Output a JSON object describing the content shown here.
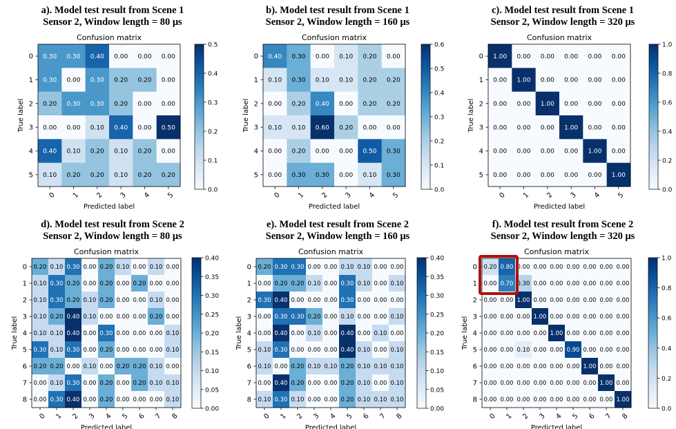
{
  "charts": [
    {
      "panel_title": "a). Model test result from Scene 1",
      "panel_subtitle": "Sensor 2, Window length = 80 μs",
      "chart_data": {
        "type": "heatmap",
        "title": "Confusion matrix",
        "xlabel": "Predicted label",
        "ylabel": "True label",
        "labels": [
          "0",
          "1",
          "2",
          "3",
          "4",
          "5"
        ],
        "values": [
          [
            0.3,
            0.3,
            0.4,
            0.0,
            0.0,
            0.0
          ],
          [
            0.3,
            0.0,
            0.3,
            0.2,
            0.2,
            0.0
          ],
          [
            0.2,
            0.3,
            0.3,
            0.2,
            0.0,
            0.0
          ],
          [
            0.0,
            0.0,
            0.1,
            0.4,
            0.0,
            0.5
          ],
          [
            0.4,
            0.1,
            0.2,
            0.1,
            0.2,
            0.0
          ],
          [
            0.1,
            0.2,
            0.2,
            0.1,
            0.2,
            0.2
          ]
        ],
        "colorbar": {
          "min": 0.0,
          "max": 0.5,
          "ticks": [
            "0.0",
            "0.1",
            "0.2",
            "0.3",
            "0.4",
            "0.5"
          ]
        }
      }
    },
    {
      "panel_title": "b). Model test result from Scene 1",
      "panel_subtitle": "Sensor 2, Window length = 160 μs",
      "chart_data": {
        "type": "heatmap",
        "title": "Confusion matrix",
        "xlabel": "Predicted label",
        "ylabel": "True label",
        "labels": [
          "0",
          "1",
          "2",
          "3",
          "4",
          "5"
        ],
        "values": [
          [
            0.4,
            0.3,
            0.0,
            0.1,
            0.2,
            0.0
          ],
          [
            0.1,
            0.3,
            0.1,
            0.1,
            0.2,
            0.2
          ],
          [
            0.0,
            0.2,
            0.4,
            0.0,
            0.2,
            0.2
          ],
          [
            0.1,
            0.1,
            0.6,
            0.2,
            0.0,
            0.0
          ],
          [
            0.0,
            0.2,
            0.0,
            0.0,
            0.5,
            0.3
          ],
          [
            0.0,
            0.3,
            0.3,
            0.0,
            0.1,
            0.3
          ]
        ],
        "colorbar": {
          "min": 0.0,
          "max": 0.6,
          "ticks": [
            "0.0",
            "0.1",
            "0.2",
            "0.3",
            "0.4",
            "0.5",
            "0.6"
          ]
        }
      }
    },
    {
      "panel_title": "c). Model test result from Scene 1",
      "panel_subtitle": "Sensor 2, Window length = 320 μs",
      "chart_data": {
        "type": "heatmap",
        "title": "Confusion matrix",
        "xlabel": "Predicted label",
        "ylabel": "True label",
        "labels": [
          "0",
          "1",
          "2",
          "3",
          "4",
          "5"
        ],
        "values": [
          [
            1.0,
            0.0,
            0.0,
            0.0,
            0.0,
            0.0
          ],
          [
            0.0,
            1.0,
            0.0,
            0.0,
            0.0,
            0.0
          ],
          [
            0.0,
            0.0,
            1.0,
            0.0,
            0.0,
            0.0
          ],
          [
            0.0,
            0.0,
            0.0,
            1.0,
            0.0,
            0.0
          ],
          [
            0.0,
            0.0,
            0.0,
            0.0,
            1.0,
            0.0
          ],
          [
            0.0,
            0.0,
            0.0,
            0.0,
            0.0,
            1.0
          ]
        ],
        "colorbar": {
          "min": 0.0,
          "max": 1.0,
          "ticks": [
            "0.0",
            "0.2",
            "0.4",
            "0.6",
            "0.8",
            "1.0"
          ]
        }
      }
    },
    {
      "panel_title": "d). Model test result from Scene 2",
      "panel_subtitle": "Sensor 2, Window length = 80 μs",
      "chart_data": {
        "type": "heatmap",
        "title": "Confusion matrix",
        "xlabel": "Predicted label",
        "ylabel": "True label",
        "labels": [
          "0",
          "1",
          "2",
          "3",
          "4",
          "5",
          "6",
          "7",
          "8"
        ],
        "values": [
          [
            0.2,
            0.1,
            0.3,
            0.0,
            0.2,
            0.1,
            0.0,
            0.1,
            0.0
          ],
          [
            0.1,
            0.3,
            0.2,
            0.0,
            0.2,
            0.0,
            0.2,
            0.0,
            0.0
          ],
          [
            0.1,
            0.3,
            0.2,
            0.1,
            0.2,
            0.0,
            0.0,
            0.1,
            0.0
          ],
          [
            0.1,
            0.2,
            0.4,
            0.1,
            0.0,
            0.0,
            0.0,
            0.2,
            0.0
          ],
          [
            0.1,
            0.1,
            0.4,
            0.0,
            0.3,
            0.0,
            0.0,
            0.0,
            0.1
          ],
          [
            0.3,
            0.1,
            0.3,
            0.0,
            0.2,
            0.0,
            0.0,
            0.0,
            0.1
          ],
          [
            0.2,
            0.2,
            0.0,
            0.1,
            0.0,
            0.2,
            0.2,
            0.1,
            0.0
          ],
          [
            0.0,
            0.1,
            0.3,
            0.0,
            0.2,
            0.0,
            0.2,
            0.1,
            0.1
          ],
          [
            0.0,
            0.3,
            0.4,
            0.0,
            0.2,
            0.0,
            0.0,
            0.0,
            0.1
          ]
        ],
        "colorbar": {
          "min": 0.0,
          "max": 0.4,
          "ticks": [
            "0.00",
            "0.05",
            "0.10",
            "0.15",
            "0.20",
            "0.25",
            "0.30",
            "0.35",
            "0.40"
          ]
        }
      }
    },
    {
      "panel_title": "e). Model test result from Scene 2",
      "panel_subtitle": "Sensor 2, Window length = 160 μs",
      "chart_data": {
        "type": "heatmap",
        "title": "Confusion matrix",
        "xlabel": "Predicted label",
        "ylabel": "True label",
        "labels": [
          "0",
          "1",
          "2",
          "3",
          "4",
          "5",
          "6",
          "7",
          "8"
        ],
        "values": [
          [
            0.2,
            0.3,
            0.3,
            0.0,
            0.0,
            0.1,
            0.1,
            0.0,
            0.0
          ],
          [
            0.0,
            0.2,
            0.2,
            0.1,
            0.0,
            0.3,
            0.1,
            0.0,
            0.1
          ],
          [
            0.3,
            0.4,
            0.0,
            0.0,
            0.0,
            0.3,
            0.0,
            0.0,
            0.0
          ],
          [
            0.0,
            0.3,
            0.3,
            0.2,
            0.0,
            0.1,
            0.0,
            0.0,
            0.1
          ],
          [
            0.0,
            0.4,
            0.0,
            0.1,
            0.0,
            0.4,
            0.0,
            0.1,
            0.0
          ],
          [
            0.1,
            0.3,
            0.0,
            0.0,
            0.0,
            0.4,
            0.1,
            0.0,
            0.1
          ],
          [
            0.1,
            0.0,
            0.2,
            0.1,
            0.1,
            0.2,
            0.1,
            0.1,
            0.1
          ],
          [
            0.0,
            0.4,
            0.2,
            0.0,
            0.0,
            0.2,
            0.1,
            0.0,
            0.1
          ],
          [
            0.1,
            0.3,
            0.1,
            0.0,
            0.0,
            0.2,
            0.1,
            0.1,
            0.1
          ]
        ],
        "colorbar": {
          "min": 0.0,
          "max": 0.4,
          "ticks": [
            "0.00",
            "0.05",
            "0.10",
            "0.15",
            "0.20",
            "0.25",
            "0.30",
            "0.35",
            "0.40"
          ]
        }
      }
    },
    {
      "panel_title": "f). Model test result from Scene 2",
      "panel_subtitle": "Sensor 2, Window length = 320 μs",
      "chart_data": {
        "type": "heatmap",
        "title": "Confusion matrix",
        "xlabel": "Predicted label",
        "ylabel": "True label",
        "labels": [
          "0",
          "1",
          "2",
          "3",
          "4",
          "5",
          "6",
          "7",
          "8"
        ],
        "values": [
          [
            0.2,
            0.8,
            0.0,
            0.0,
            0.0,
            0.0,
            0.0,
            0.0,
            0.0
          ],
          [
            0.0,
            0.7,
            0.3,
            0.0,
            0.0,
            0.0,
            0.0,
            0.0,
            0.0
          ],
          [
            0.0,
            0.0,
            1.0,
            0.0,
            0.0,
            0.0,
            0.0,
            0.0,
            0.0
          ],
          [
            0.0,
            0.0,
            0.0,
            1.0,
            0.0,
            0.0,
            0.0,
            0.0,
            0.0
          ],
          [
            0.0,
            0.0,
            0.0,
            0.0,
            1.0,
            0.0,
            0.0,
            0.0,
            0.0
          ],
          [
            0.0,
            0.0,
            0.1,
            0.0,
            0.0,
            0.9,
            0.0,
            0.0,
            0.0
          ],
          [
            0.0,
            0.0,
            0.0,
            0.0,
            0.0,
            0.0,
            1.0,
            0.0,
            0.0
          ],
          [
            0.0,
            0.0,
            0.0,
            0.0,
            0.0,
            0.0,
            0.0,
            1.0,
            0.0
          ],
          [
            0.0,
            0.0,
            0.0,
            0.0,
            0.0,
            0.0,
            0.0,
            0.0,
            1.0
          ]
        ],
        "colorbar": {
          "min": 0.0,
          "max": 1.0,
          "ticks": [
            "0.0",
            "0.2",
            "0.4",
            "0.6",
            "0.8",
            "1.0"
          ]
        },
        "highlight": {
          "rows": [
            0,
            1
          ],
          "cols": [
            0,
            1
          ],
          "color": "#b01010"
        }
      }
    }
  ]
}
